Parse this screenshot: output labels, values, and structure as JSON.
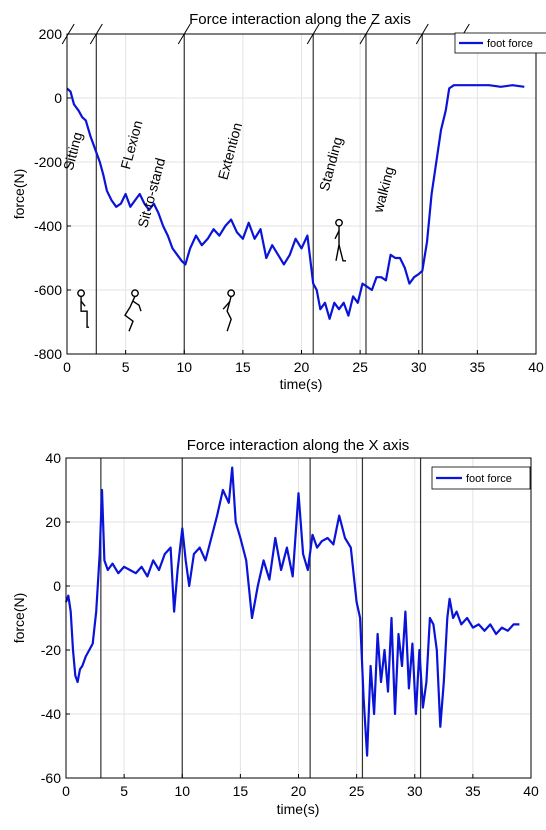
{
  "chart_data": [
    {
      "type": "line",
      "title": "Force interaction along the Z axis",
      "xlabel": "time(s)",
      "ylabel": "force(N)",
      "xlim": [
        0,
        40
      ],
      "ylim": [
        -800,
        200
      ],
      "xticks": [
        0,
        5,
        10,
        15,
        20,
        25,
        30,
        35,
        40
      ],
      "yticks": [
        -800,
        -600,
        -400,
        -200,
        0,
        200
      ],
      "grid": true,
      "legend_position": "top-right",
      "phase_lines": [
        2.5,
        10,
        21,
        25.5,
        30.3
      ],
      "phase_labels": [
        {
          "text": "Sitting",
          "x": 0.9,
          "y": -170
        },
        {
          "text": "FLexion",
          "x": 5.9,
          "y": -150
        },
        {
          "text": "Sit-to-stand",
          "x": 7.6,
          "y": -300
        },
        {
          "text": "Extention",
          "x": 14.3,
          "y": -170
        },
        {
          "text": "Standing",
          "x": 22.9,
          "y": -210
        },
        {
          "text": "walking",
          "x": 27.4,
          "y": -290
        }
      ],
      "series": [
        {
          "name": "foot force",
          "color": "#0a14d8",
          "x": [
            0,
            0.3,
            0.6,
            1,
            1.3,
            1.6,
            2,
            2.3,
            2.5,
            2.8,
            3.1,
            3.4,
            3.8,
            4.2,
            4.6,
            5,
            5.4,
            5.8,
            6.2,
            6.6,
            7,
            7.4,
            7.8,
            8.2,
            8.6,
            9,
            9.4,
            9.8,
            10.1,
            10.5,
            11,
            11.5,
            12,
            12.5,
            13,
            13.5,
            14,
            14.5,
            15,
            15.5,
            16,
            16.5,
            17,
            17.5,
            18,
            18.5,
            19,
            19.5,
            20,
            20.5,
            21,
            21.3,
            21.6,
            22,
            22.4,
            22.8,
            23.2,
            23.6,
            24,
            24.4,
            24.8,
            25.2,
            25.6,
            26,
            26.4,
            26.8,
            27.2,
            27.6,
            28,
            28.4,
            28.8,
            29.2,
            29.6,
            30,
            30.3,
            30.7,
            31.1,
            31.5,
            31.9,
            32.3,
            32.6,
            33,
            34,
            35,
            36,
            37,
            38,
            39
          ],
          "y": [
            30,
            20,
            -20,
            -40,
            -60,
            -70,
            -120,
            -150,
            -170,
            -200,
            -240,
            -290,
            -320,
            -340,
            -330,
            -300,
            -340,
            -320,
            -300,
            -330,
            -350,
            -330,
            -360,
            -400,
            -430,
            -470,
            -490,
            -510,
            -520,
            -470,
            -430,
            -460,
            -440,
            -410,
            -430,
            -400,
            -380,
            -420,
            -440,
            -390,
            -440,
            -410,
            -500,
            -460,
            -490,
            -520,
            -490,
            -440,
            -470,
            -430,
            -580,
            -600,
            -660,
            -640,
            -690,
            -640,
            -660,
            -640,
            -680,
            -620,
            -640,
            -580,
            -590,
            -600,
            -560,
            -560,
            -570,
            -490,
            -500,
            -500,
            -530,
            -580,
            -560,
            -550,
            -540,
            -450,
            -300,
            -200,
            -100,
            -40,
            30,
            40,
            40,
            40,
            40,
            35,
            40,
            35
          ]
        }
      ]
    },
    {
      "type": "line",
      "title": "Force interaction along the X axis",
      "xlabel": "time(s)",
      "ylabel": "force(N)",
      "xlim": [
        0,
        40
      ],
      "ylim": [
        -60,
        40
      ],
      "xticks": [
        0,
        5,
        10,
        15,
        20,
        25,
        30,
        35,
        40
      ],
      "yticks": [
        -60,
        -40,
        -20,
        0,
        20,
        40
      ],
      "grid": true,
      "legend_position": "top-right",
      "phase_lines": [
        3,
        10,
        21,
        25.5,
        30.5
      ],
      "series": [
        {
          "name": "foot force",
          "color": "#0a14d8",
          "x": [
            0,
            0.2,
            0.4,
            0.6,
            0.8,
            1.0,
            1.2,
            1.4,
            1.7,
            2.0,
            2.3,
            2.6,
            2.9,
            3.1,
            3.3,
            3.6,
            4.0,
            4.5,
            5.0,
            5.5,
            6.0,
            6.5,
            7.0,
            7.5,
            8.0,
            8.5,
            9.0,
            9.3,
            9.6,
            10.0,
            10.3,
            10.6,
            11.0,
            11.5,
            12.0,
            12.5,
            13.0,
            13.5,
            14.0,
            14.3,
            14.6,
            15.0,
            15.5,
            16.0,
            16.5,
            17.0,
            17.5,
            18.0,
            18.5,
            19.0,
            19.5,
            20.0,
            20.4,
            20.8,
            21.2,
            21.6,
            22.0,
            22.5,
            23.0,
            23.5,
            24.0,
            24.5,
            25.0,
            25.3,
            25.6,
            25.9,
            26.2,
            26.5,
            26.8,
            27.1,
            27.4,
            27.7,
            28.0,
            28.3,
            28.6,
            28.9,
            29.2,
            29.5,
            29.8,
            30.1,
            30.4,
            30.7,
            31.0,
            31.3,
            31.6,
            31.9,
            32.2,
            32.5,
            32.8,
            33.0,
            33.3,
            33.6,
            34.0,
            34.5,
            35.0,
            35.5,
            36.0,
            36.5,
            37.0,
            37.5,
            38.0,
            38.5,
            39.0
          ],
          "y": [
            -5,
            -3,
            -8,
            -20,
            -28,
            -30,
            -26,
            -25,
            -22,
            -20,
            -18,
            -8,
            10,
            30,
            8,
            5,
            7,
            4,
            6,
            5,
            4,
            6,
            3,
            8,
            5,
            10,
            12,
            -8,
            5,
            18,
            8,
            0,
            10,
            12,
            8,
            15,
            22,
            30,
            26,
            37,
            20,
            15,
            8,
            -10,
            0,
            8,
            2,
            15,
            5,
            12,
            3,
            29,
            10,
            5,
            16,
            12,
            14,
            15,
            13,
            22,
            15,
            12,
            -5,
            -10,
            -35,
            -53,
            -25,
            -40,
            -15,
            -30,
            -20,
            -33,
            -10,
            -40,
            -15,
            -25,
            -8,
            -32,
            -18,
            -40,
            -20,
            -38,
            -30,
            -10,
            -12,
            -20,
            -44,
            -30,
            -10,
            -4,
            -10,
            -8,
            -12,
            -10,
            -13,
            -12,
            -14,
            -12,
            -15,
            -13,
            -14,
            -12,
            -12
          ]
        }
      ]
    }
  ]
}
